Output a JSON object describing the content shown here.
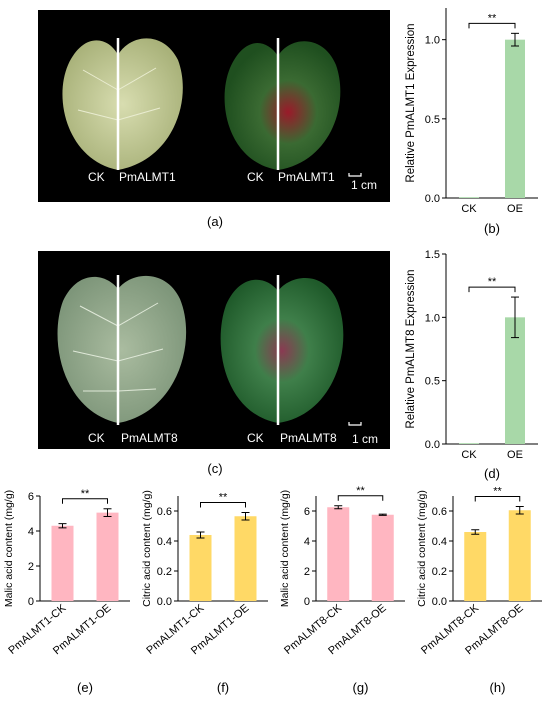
{
  "panel_letters": [
    "(a)",
    "(b)",
    "(c)",
    "(d)",
    "(e)",
    "(f)",
    "(g)",
    "(h)"
  ],
  "photo_a": {
    "leaf1_labels": [
      "CK",
      "PmALMT1"
    ],
    "leaf2_labels": [
      "CK",
      "PmALMT1"
    ],
    "scale_bar": "1 cm"
  },
  "photo_c": {
    "leaf1_labels": [
      "CK",
      "PmALMT8"
    ],
    "leaf2_labels": [
      "CK",
      "PmALMT8"
    ],
    "scale_bar": "1 cm"
  },
  "colors": {
    "green_bar": "#a8d8a8",
    "pink_bar": "#ffb6c1",
    "yellow_bar": "#ffd966"
  },
  "chart_data": [
    {
      "id": "b",
      "type": "bar",
      "categories": [
        "CK",
        "OE"
      ],
      "values": [
        0.0,
        1.0
      ],
      "errors": [
        0.0,
        0.04
      ],
      "ylabel": "Relative PmALMT1 Expression",
      "ylim": [
        0,
        1.2
      ],
      "yticks": [
        "0.0",
        "0.5",
        "1.0"
      ],
      "significance": "**",
      "color": "green"
    },
    {
      "id": "d",
      "type": "bar",
      "categories": [
        "CK",
        "OE"
      ],
      "values": [
        0.0,
        1.0
      ],
      "errors": [
        0.0,
        0.16
      ],
      "ylabel": "Relative PmALMT8 Expression",
      "ylim": [
        0,
        1.5
      ],
      "yticks": [
        "0.0",
        "0.5",
        "1.0",
        "1.5"
      ],
      "significance": "**",
      "color": "green"
    },
    {
      "id": "e",
      "type": "bar",
      "categories": [
        "PmALMT1-CK",
        "PmALMT1-OE"
      ],
      "values": [
        4.3,
        5.05
      ],
      "errors": [
        0.12,
        0.22
      ],
      "ylabel": "Malic acid content (mg/g)",
      "ylim": [
        0,
        6
      ],
      "yticks": [
        "0",
        "2",
        "4",
        "6"
      ],
      "significance": "**",
      "color": "pink"
    },
    {
      "id": "f",
      "type": "bar",
      "categories": [
        "PmALMT1-CK",
        "PmALMT1-OE"
      ],
      "values": [
        0.44,
        0.565
      ],
      "errors": [
        0.02,
        0.025
      ],
      "ylabel": "Citric acid content (mg/g)",
      "ylim": [
        0,
        0.7
      ],
      "yticks": [
        "0.0",
        "0.2",
        "0.4",
        "0.6"
      ],
      "significance": "**",
      "color": "yellow"
    },
    {
      "id": "g",
      "type": "bar",
      "categories": [
        "PmALMT8-CK",
        "PmALMT8-OE"
      ],
      "values": [
        6.25,
        5.75
      ],
      "errors": [
        0.1,
        0.04
      ],
      "ylabel": "Malic acid content (mg/g)",
      "ylim": [
        0,
        7
      ],
      "yticks": [
        "0",
        "2",
        "4",
        "6"
      ],
      "significance": "**",
      "color": "pink"
    },
    {
      "id": "h",
      "type": "bar",
      "categories": [
        "PmALMT8-CK",
        "PmALMT8-OE"
      ],
      "values": [
        0.46,
        0.605
      ],
      "errors": [
        0.015,
        0.025
      ],
      "ylabel": "Citric acid content (mg/g)",
      "ylim": [
        0,
        0.7
      ],
      "yticks": [
        "0.0",
        "0.2",
        "0.4",
        "0.6"
      ],
      "significance": "**",
      "color": "yellow"
    }
  ]
}
